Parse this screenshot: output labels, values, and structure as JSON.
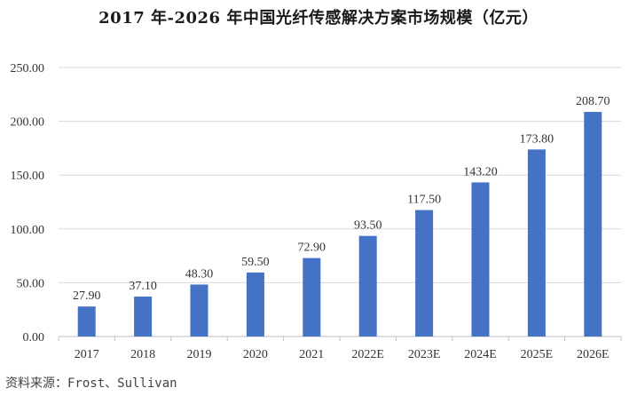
{
  "title": "2017 年-2026 年中国光纤传感解决方案市场规模（亿元）",
  "source": "资料来源：Frost、Sullivan",
  "chart_data": {
    "type": "bar",
    "title": "2017 年-2026 年中国光纤传感解决方案市场规模（亿元）",
    "categories": [
      "2017",
      "2018",
      "2019",
      "2020",
      "2021",
      "2022E",
      "2023E",
      "2024E",
      "2025E",
      "2026E"
    ],
    "values": [
      27.9,
      37.1,
      48.3,
      59.5,
      72.9,
      93.5,
      117.5,
      143.2,
      173.8,
      208.7
    ],
    "value_labels": [
      "27.90",
      "37.10",
      "48.30",
      "59.50",
      "72.90",
      "93.50",
      "117.50",
      "143.20",
      "173.80",
      "208.70"
    ],
    "yticks": [
      "0.00",
      "50.00",
      "100.00",
      "150.00",
      "200.00",
      "250.00"
    ],
    "ylim": [
      0,
      250
    ],
    "xlabel": "",
    "ylabel": "",
    "grid": true,
    "bar_color": "#4472C4",
    "grid_color": "#d9d9d9"
  }
}
